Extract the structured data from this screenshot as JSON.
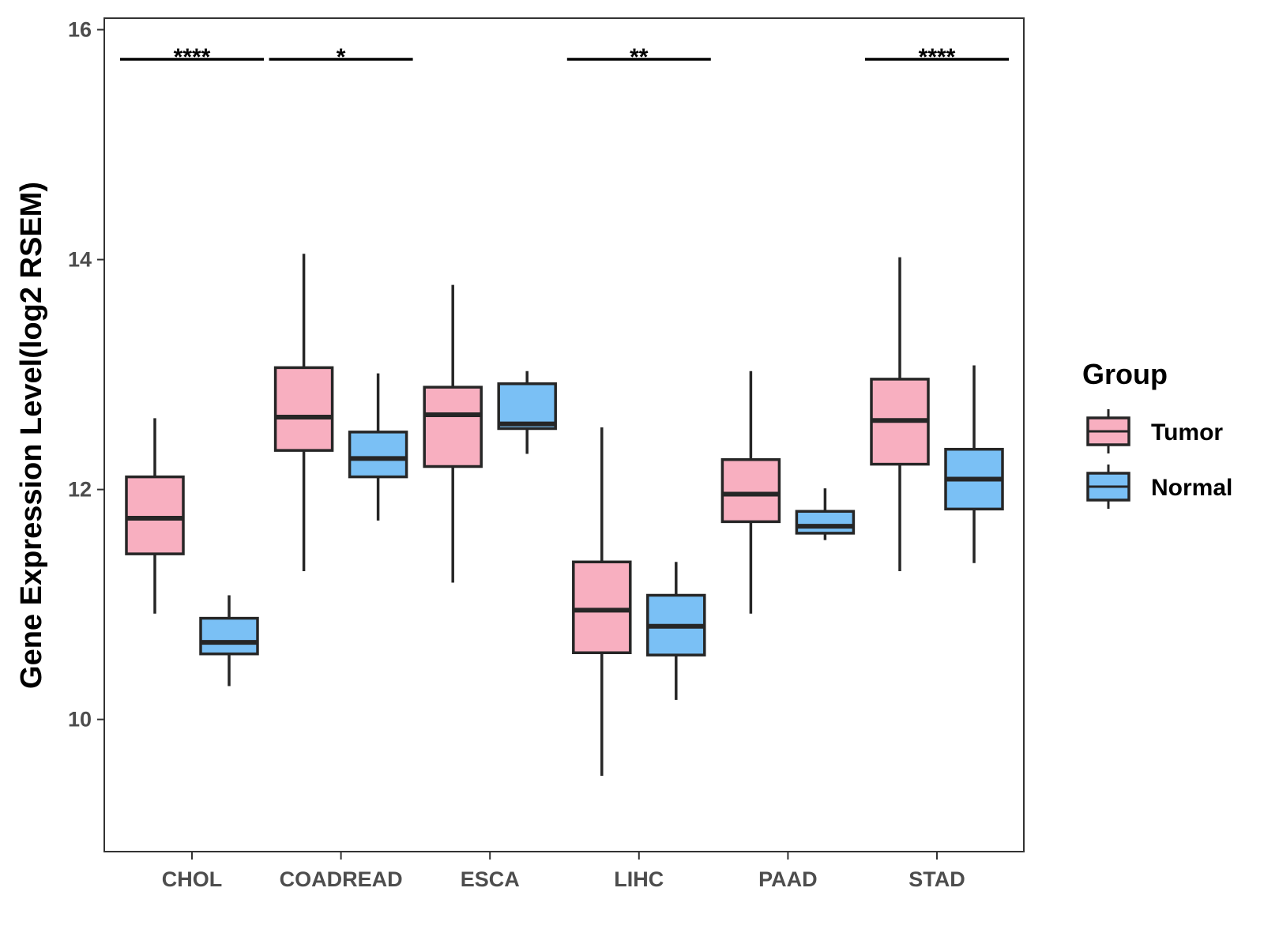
{
  "chart_data": {
    "type": "boxplot",
    "title": "",
    "xlabel": "",
    "ylabel": "Gene Expression Level(log2 RSEM)",
    "ylim": [
      8.85,
      16.1
    ],
    "yticks": [
      10,
      12,
      14,
      16
    ],
    "categories": [
      "CHOL",
      "COADREAD",
      "ESCA",
      "LIHC",
      "PAAD",
      "STAD"
    ],
    "grid": false,
    "legend": {
      "title": "Group",
      "position": "right",
      "entries": [
        {
          "name": "Tumor",
          "color": "#F8AFC0"
        },
        {
          "name": "Normal",
          "color": "#7AC0F5"
        }
      ]
    },
    "series": [
      {
        "name": "Tumor",
        "color": "#F8AFC0",
        "boxes": [
          {
            "category": "CHOL",
            "whisker_low": 10.92,
            "q1": 11.44,
            "median": 11.75,
            "q3": 12.11,
            "whisker_high": 12.62
          },
          {
            "category": "COADREAD",
            "whisker_low": 11.29,
            "q1": 12.34,
            "median": 12.63,
            "q3": 13.06,
            "whisker_high": 14.05
          },
          {
            "category": "ESCA",
            "whisker_low": 11.19,
            "q1": 12.2,
            "median": 12.65,
            "q3": 12.89,
            "whisker_high": 13.78
          },
          {
            "category": "LIHC",
            "whisker_low": 9.51,
            "q1": 10.58,
            "median": 10.95,
            "q3": 11.37,
            "whisker_high": 12.54
          },
          {
            "category": "PAAD",
            "whisker_low": 10.92,
            "q1": 11.72,
            "median": 11.96,
            "q3": 12.26,
            "whisker_high": 13.03
          },
          {
            "category": "STAD",
            "whisker_low": 11.29,
            "q1": 12.22,
            "median": 12.6,
            "q3": 12.96,
            "whisker_high": 14.02
          }
        ]
      },
      {
        "name": "Normal",
        "color": "#7AC0F5",
        "boxes": [
          {
            "category": "CHOL",
            "whisker_low": 10.29,
            "q1": 10.57,
            "median": 10.67,
            "q3": 10.88,
            "whisker_high": 11.08
          },
          {
            "category": "COADREAD",
            "whisker_low": 11.73,
            "q1": 12.11,
            "median": 12.27,
            "q3": 12.5,
            "whisker_high": 13.01
          },
          {
            "category": "ESCA",
            "whisker_low": 12.31,
            "q1": 12.53,
            "median": 12.57,
            "q3": 12.92,
            "whisker_high": 13.03
          },
          {
            "category": "LIHC",
            "whisker_low": 10.17,
            "q1": 10.56,
            "median": 10.81,
            "q3": 11.08,
            "whisker_high": 11.37
          },
          {
            "category": "PAAD",
            "whisker_low": 11.56,
            "q1": 11.62,
            "median": 11.68,
            "q3": 11.81,
            "whisker_high": 12.01
          },
          {
            "category": "STAD",
            "whisker_low": 11.36,
            "q1": 11.83,
            "median": 12.09,
            "q3": 12.35,
            "whisker_high": 13.08
          }
        ]
      }
    ],
    "annotations": [
      {
        "category": "CHOL",
        "label": "****"
      },
      {
        "category": "COADREAD",
        "label": "*"
      },
      {
        "category": "LIHC",
        "label": "**"
      },
      {
        "category": "STAD",
        "label": "****"
      }
    ]
  }
}
